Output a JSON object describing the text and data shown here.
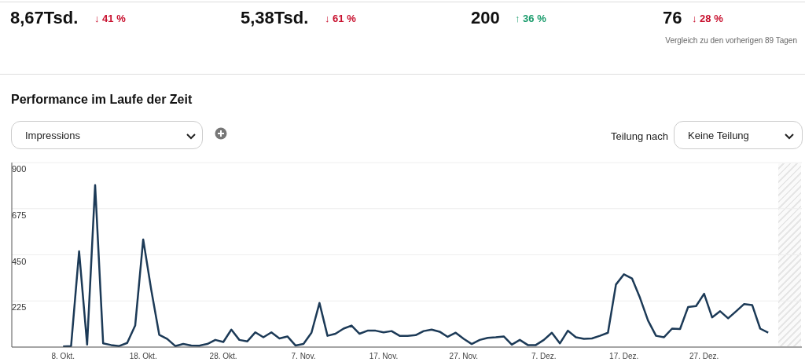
{
  "chart_data": {
    "type": "line",
    "title": "Performance im Laufe der Zeit",
    "annotations": [
      "8,67Tsd.",
      "↓ 41 %",
      "5,38Tsd.",
      "↓ 61 %",
      "200",
      "↑ 36 %",
      "76",
      "↓ 28 %",
      "Vergleich zu den vorherigen 89 Tagen",
      "Impressions",
      "Teilung nach",
      "Keine Teilung"
    ],
    "categories": [
      "8. Okt.",
      null,
      null,
      null,
      null,
      null,
      null,
      null,
      null,
      null,
      "18. Okt.",
      null,
      null,
      null,
      null,
      null,
      null,
      null,
      null,
      null,
      "28. Okt.",
      null,
      null,
      null,
      null,
      null,
      null,
      null,
      null,
      null,
      "7. Nov.",
      null,
      null,
      null,
      null,
      null,
      null,
      null,
      null,
      null,
      "17. Nov.",
      null,
      null,
      null,
      null,
      null,
      null,
      null,
      null,
      null,
      "27. Nov.",
      null,
      null,
      null,
      null,
      null,
      null,
      null,
      null,
      null,
      "7. Dez.",
      null,
      null,
      null,
      null,
      null,
      null,
      null,
      null,
      null,
      "17. Dez.",
      null,
      null,
      null,
      null,
      null,
      null,
      null,
      null,
      null,
      "27. Dez.",
      null,
      null,
      null,
      null,
      null,
      null,
      null,
      null
    ],
    "series": [
      {
        "color": "#1c3a57",
        "values": [
          3,
          5,
          467,
          12,
          790,
          18,
          10,
          5,
          20,
          105,
          525,
          280,
          60,
          40,
          5,
          15,
          8,
          7,
          15,
          35,
          25,
          85,
          35,
          28,
          72,
          48,
          72,
          42,
          52,
          8,
          15,
          70,
          215,
          55,
          65,
          90,
          105,
          65,
          80,
          80,
          72,
          78,
          55,
          55,
          58,
          78,
          85,
          75,
          50,
          70,
          40,
          15,
          35,
          45,
          48,
          52,
          12,
          35,
          10,
          10,
          35,
          70,
          18,
          80,
          48,
          40,
          42,
          55,
          70,
          305,
          355,
          335,
          240,
          130,
          55,
          48,
          90,
          88,
          195,
          200,
          260,
          145,
          175,
          140,
          175,
          210,
          205,
          90,
          70
        ]
      }
    ],
    "ylim": [
      0,
      900
    ],
    "yticks": [
      225,
      450,
      675,
      900
    ],
    "grid": "y",
    "marker": "none",
    "line_style": "solid"
  }
}
